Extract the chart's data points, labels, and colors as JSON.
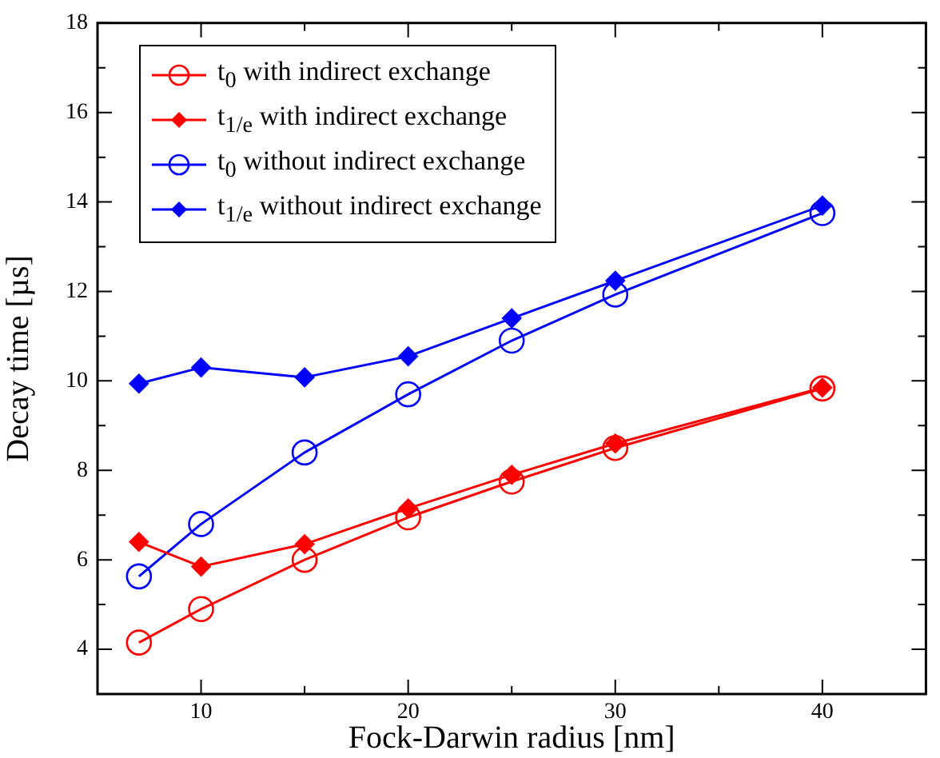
{
  "chart_data": {
    "type": "line",
    "xlabel": "Fock-Darwin radius [nm]",
    "ylabel": "Decay time [µs]",
    "x": [
      7,
      10,
      15,
      20,
      25,
      30,
      40
    ],
    "xlim": [
      5,
      45
    ],
    "xticks": [
      {
        "value": 5,
        "label": null
      },
      10,
      {
        "value": 15,
        "label": null
      },
      20,
      {
        "value": 25,
        "label": null
      },
      30,
      {
        "value": 35,
        "label": null
      },
      40,
      {
        "value": 45,
        "label": null
      }
    ],
    "ylim": [
      3,
      18
    ],
    "yticks": [
      {
        "value": 3,
        "label": null
      },
      4,
      {
        "value": 5,
        "label": null
      },
      6,
      {
        "value": 7,
        "label": null
      },
      8,
      {
        "value": 9,
        "label": null
      },
      10,
      {
        "value": 11,
        "label": null
      },
      12,
      {
        "value": 13,
        "label": null
      },
      14,
      {
        "value": 15,
        "label": null
      },
      16,
      {
        "value": 17,
        "label": null
      },
      18
    ],
    "grid": false,
    "legend": "top left",
    "line_style": "solid",
    "series": [
      {
        "name": "t$_{0}$ with indirect exchange",
        "color": "#ff0000",
        "marker": "circle",
        "values": [
          4.15,
          4.9,
          6.0,
          6.95,
          7.75,
          8.5,
          9.83
        ]
      },
      {
        "name": "t$_{1/e}$ with indirect exchange",
        "color": "#ff0000",
        "marker": "diamond",
        "values": [
          6.4,
          5.85,
          6.35,
          7.15,
          7.9,
          8.6,
          9.85
        ]
      },
      {
        "name": "t$_{0}$ without indirect exchange",
        "color": "#0000ff",
        "marker": "circle",
        "values": [
          5.63,
          6.8,
          8.4,
          9.7,
          10.9,
          11.93,
          13.75
        ]
      },
      {
        "name": "t$_{1/e}$ without indirect exchange",
        "color": "#0000ff",
        "marker": "diamond",
        "values": [
          9.94,
          10.3,
          10.08,
          10.55,
          11.4,
          12.24,
          13.92
        ]
      }
    ]
  }
}
